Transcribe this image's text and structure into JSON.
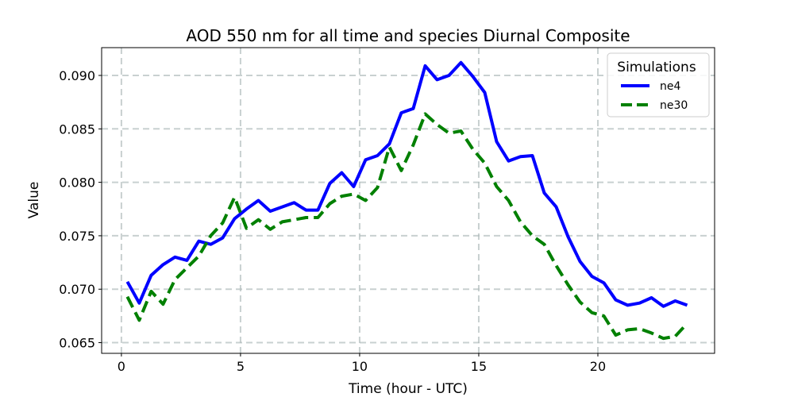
{
  "chart_data": {
    "type": "line",
    "title": "AOD 550 nm for all time and species Diurnal Composite",
    "xlabel": "Time (hour - UTC)",
    "ylabel": "Value",
    "xlim": [
      -0.83,
      24.9
    ],
    "ylim": [
      0.064,
      0.0926
    ],
    "xticks": [
      0,
      5,
      10,
      15,
      20
    ],
    "xtick_labels": [
      "0",
      "5",
      "10",
      "15",
      "20"
    ],
    "yticks": [
      0.065,
      0.07,
      0.075,
      0.08,
      0.085,
      0.09
    ],
    "ytick_labels": [
      "0.065",
      "0.070",
      "0.075",
      "0.080",
      "0.085",
      "0.090"
    ],
    "grid": true,
    "legend": {
      "title": "Simulations",
      "placement": "top-right"
    },
    "x": [
      0.25,
      0.75,
      1.25,
      1.75,
      2.25,
      2.75,
      3.25,
      3.75,
      4.25,
      4.75,
      5.25,
      5.75,
      6.25,
      6.75,
      7.25,
      7.75,
      8.25,
      8.75,
      9.25,
      9.75,
      10.25,
      10.75,
      11.25,
      11.75,
      12.25,
      12.75,
      13.25,
      13.75,
      14.25,
      14.75,
      15.25,
      15.75,
      16.25,
      16.75,
      17.25,
      17.75,
      18.25,
      18.75,
      19.25,
      19.75,
      20.25,
      20.75,
      21.25,
      21.75,
      22.25,
      22.75,
      23.25,
      23.75
    ],
    "series": [
      {
        "name": "ne4",
        "color": "#0000ff",
        "style": "solid",
        "values": [
          0.0707,
          0.0687,
          0.0713,
          0.0723,
          0.073,
          0.0727,
          0.0745,
          0.0742,
          0.0748,
          0.0766,
          0.0775,
          0.0783,
          0.0773,
          0.0777,
          0.0781,
          0.0774,
          0.0774,
          0.0799,
          0.0809,
          0.0796,
          0.0821,
          0.0825,
          0.0836,
          0.0865,
          0.0869,
          0.0909,
          0.0896,
          0.09,
          0.0912,
          0.0899,
          0.0884,
          0.0838,
          0.082,
          0.0824,
          0.0825,
          0.079,
          0.0777,
          0.0749,
          0.0726,
          0.0712,
          0.0706,
          0.069,
          0.0685,
          0.0687,
          0.0692,
          0.0684,
          0.0689,
          0.0685
        ]
      },
      {
        "name": "ne30",
        "color": "#008000",
        "style": "dashed",
        "values": [
          0.0693,
          0.0671,
          0.0698,
          0.0686,
          0.0709,
          0.072,
          0.0731,
          0.075,
          0.0762,
          0.0786,
          0.0757,
          0.0765,
          0.0756,
          0.0763,
          0.0765,
          0.0767,
          0.0767,
          0.078,
          0.0787,
          0.0789,
          0.0783,
          0.0795,
          0.0833,
          0.0811,
          0.0835,
          0.0864,
          0.0854,
          0.0846,
          0.0848,
          0.0831,
          0.0818,
          0.0796,
          0.0783,
          0.0763,
          0.075,
          0.0742,
          0.0722,
          0.0704,
          0.0688,
          0.0678,
          0.0675,
          0.0657,
          0.0662,
          0.0663,
          0.0659,
          0.0654,
          0.0656,
          0.0668
        ]
      }
    ]
  }
}
